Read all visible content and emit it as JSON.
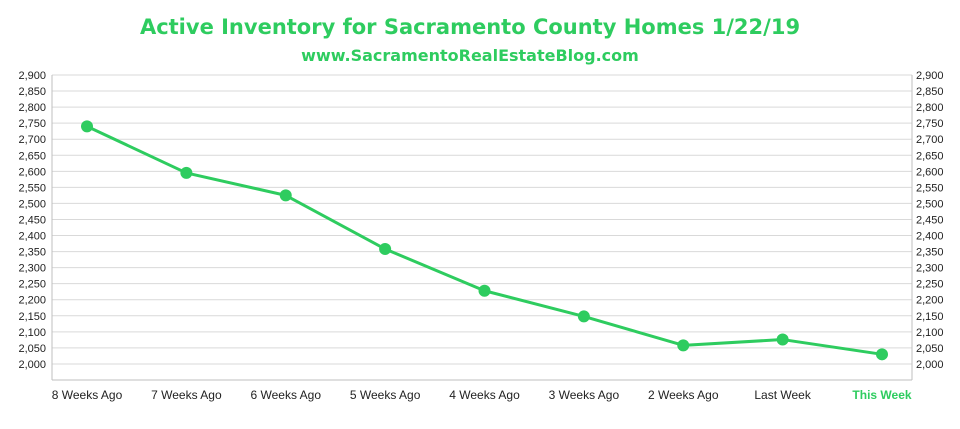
{
  "chart_data": {
    "type": "line",
    "title": "Active Inventory for Sacramento County Homes 1/22/19",
    "subtitle": "www.SacramentoRealEstateBlog.com",
    "categories": [
      "8 Weeks Ago",
      "7 Weeks Ago",
      "6 Weeks Ago",
      "5 Weeks Ago",
      "4 Weeks Ago",
      "3 Weeks Ago",
      "2 Weeks Ago",
      "Last Week",
      "This Week"
    ],
    "highlight_category": "This Week",
    "values": [
      2740,
      2595,
      2525,
      2358,
      2228,
      2148,
      2058,
      2076,
      2030
    ],
    "ylim": [
      1950,
      2900
    ],
    "yticks": [
      2000,
      2050,
      2100,
      2150,
      2200,
      2250,
      2300,
      2350,
      2400,
      2450,
      2500,
      2550,
      2600,
      2650,
      2700,
      2750,
      2800,
      2850,
      2900
    ],
    "ytick_labels": [
      "2,000",
      "2,050",
      "2,100",
      "2,150",
      "2,200",
      "2,250",
      "2,300",
      "2,350",
      "2,400",
      "2,450",
      "2,500",
      "2,550",
      "2,600",
      "2,650",
      "2,700",
      "2,750",
      "2,800",
      "2,850",
      "2,900"
    ],
    "secondary_y_axis": true,
    "grid": true,
    "line_color": "#2ecc5f",
    "grid_color": "#d9d9d9"
  }
}
